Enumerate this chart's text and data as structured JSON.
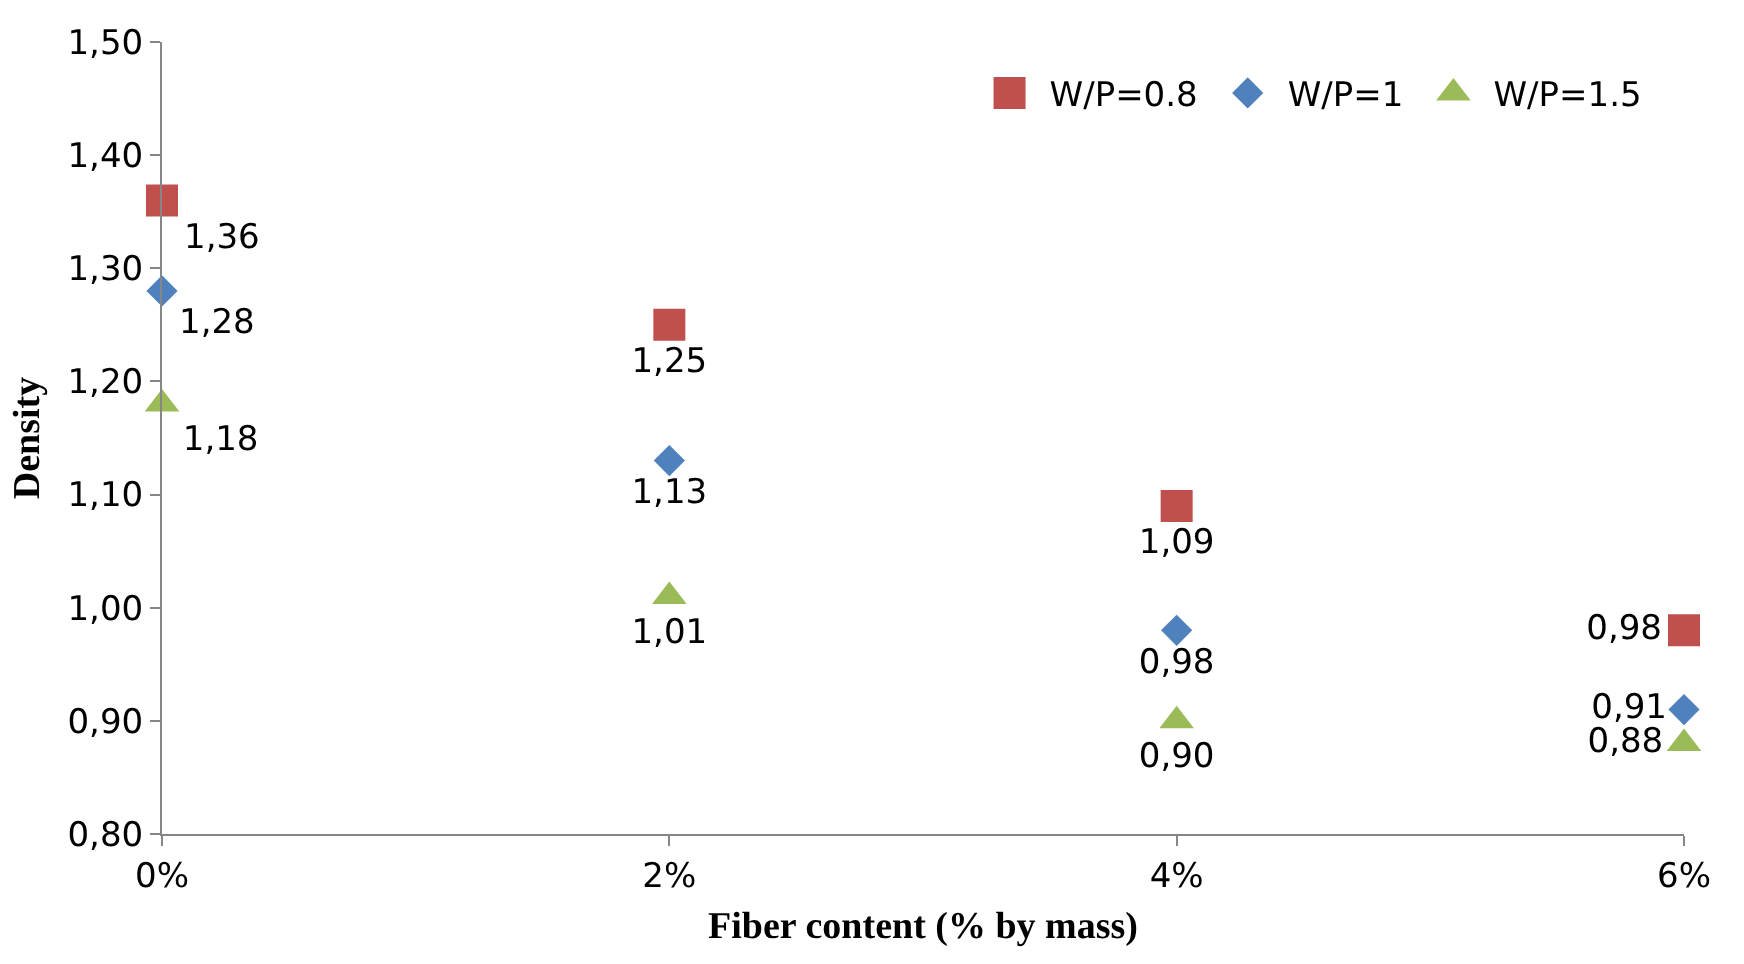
{
  "chart_data": {
    "type": "scatter",
    "xlabel": "Fiber content (% by mass)",
    "ylabel": "Density",
    "x": [
      0,
      2,
      4,
      6
    ],
    "xlim": [
      0,
      6
    ],
    "xticks": [
      {
        "value": 0,
        "label": "0%"
      },
      {
        "value": 2,
        "label": "2%"
      },
      {
        "value": 4,
        "label": "4%"
      },
      {
        "value": 6,
        "label": "6%"
      }
    ],
    "ylim": [
      0.8,
      1.5
    ],
    "yticks": [
      {
        "value": 0.8,
        "label": "0,80"
      },
      {
        "value": 0.9,
        "label": "0,90"
      },
      {
        "value": 1.0,
        "label": "1,00"
      },
      {
        "value": 1.1,
        "label": "1,10"
      },
      {
        "value": 1.2,
        "label": "1,20"
      },
      {
        "value": 1.3,
        "label": "1,30"
      },
      {
        "value": 1.4,
        "label": "1,40"
      },
      {
        "value": 1.5,
        "label": "1,50"
      }
    ],
    "grid": false,
    "legend": "top right",
    "series": [
      {
        "name": "W/P=0.8",
        "color": "#c0504d",
        "marker": "square",
        "values": [
          1.36,
          1.25,
          1.09,
          0.98
        ],
        "value_labels": [
          "1,36",
          "1,25",
          "1,09",
          "0,98"
        ]
      },
      {
        "name": "W/P=1",
        "color": "#4f81bd",
        "marker": "diamond",
        "values": [
          1.28,
          1.13,
          0.98,
          0.91
        ],
        "value_labels": [
          "1,28",
          "1,13",
          "0,98",
          "0,91"
        ]
      },
      {
        "name": "W/P=1.5",
        "color": "#9bbb59",
        "marker": "triangle",
        "values": [
          1.18,
          1.01,
          0.9,
          0.88
        ],
        "value_labels": [
          "1,18",
          "1,01",
          "0,90",
          "0,88"
        ]
      }
    ]
  }
}
